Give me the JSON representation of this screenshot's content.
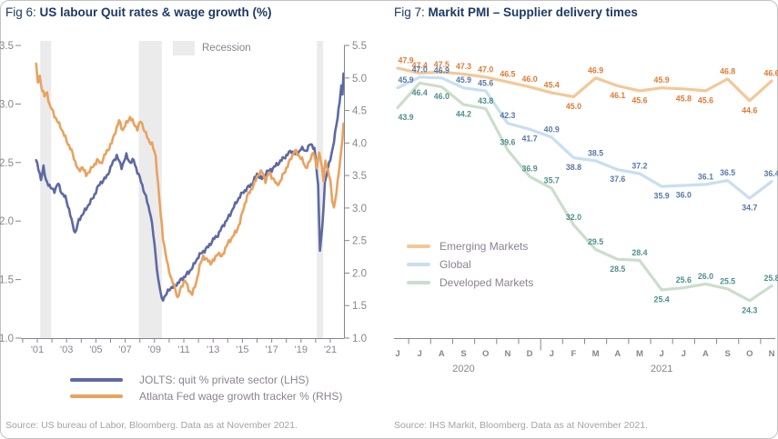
{
  "fig6": {
    "title_prefix": "Fig 6: ",
    "title": "US labour Quit rates & wage growth (%)",
    "recession_label": "Recession",
    "legend": [
      {
        "label": "JOLTS: quit % private sector (LHS)",
        "color": "#5e69a3"
      },
      {
        "label": "Atlanta Fed wage growth tracker % (RHS)",
        "color": "#e9a25f"
      }
    ],
    "source": "Source: US bureau of Labor, Bloomberg. Data as at November 2021.",
    "chart_data": {
      "type": "line",
      "title": "US labour Quit rates & wage growth (%)",
      "x_range": [
        1999.9,
        2021.95
      ],
      "x_tick_labels": [
        "'01",
        "'03",
        "'05",
        "'07",
        "'09",
        "'11",
        "'13",
        "'15",
        "'17",
        "'19",
        "'21"
      ],
      "x_tick_years": [
        2001,
        2003,
        2005,
        2007,
        2009,
        2011,
        2013,
        2015,
        2017,
        2019,
        2021
      ],
      "ylim_left": [
        1.0,
        3.5
      ],
      "yticks_left": [
        "3.5",
        "3.0",
        "2.5",
        "2.0",
        "1.5",
        "1.0"
      ],
      "ylim_right": [
        1.0,
        5.5
      ],
      "yticks_right": [
        "5.5",
        "5.0",
        "4.5",
        "4.0",
        "3.5",
        "3.0",
        "2.5",
        "2.0",
        "1.5",
        "1.0"
      ],
      "recession_band_color": "#ebebeb",
      "recession_bands": [
        [
          2001.2,
          2001.95
        ],
        [
          2007.92,
          2009.5
        ],
        [
          2020.08,
          2020.5
        ]
      ],
      "series": [
        {
          "name": "JOLTS: quit % private sector (LHS)",
          "axis": "left",
          "color": "#5e69a3",
          "points": [
            [
              2000.92,
              2.52
            ],
            [
              2001.08,
              2.44
            ],
            [
              2001.25,
              2.36
            ],
            [
              2001.42,
              2.46
            ],
            [
              2001.58,
              2.35
            ],
            [
              2001.75,
              2.32
            ],
            [
              2001.92,
              2.28
            ],
            [
              2002.17,
              2.26
            ],
            [
              2002.42,
              2.32
            ],
            [
              2002.67,
              2.24
            ],
            [
              2002.92,
              2.2
            ],
            [
              2003.17,
              2.1
            ],
            [
              2003.42,
              1.96
            ],
            [
              2003.58,
              1.9
            ],
            [
              2003.83,
              2.0
            ],
            [
              2004.08,
              2.06
            ],
            [
              2004.33,
              2.1
            ],
            [
              2004.58,
              2.16
            ],
            [
              2004.83,
              2.2
            ],
            [
              2005.08,
              2.28
            ],
            [
              2005.42,
              2.34
            ],
            [
              2005.75,
              2.38
            ],
            [
              2006.08,
              2.48
            ],
            [
              2006.42,
              2.56
            ],
            [
              2006.75,
              2.46
            ],
            [
              2007.08,
              2.56
            ],
            [
              2007.33,
              2.5
            ],
            [
              2007.58,
              2.52
            ],
            [
              2007.83,
              2.42
            ],
            [
              2008.08,
              2.34
            ],
            [
              2008.42,
              2.2
            ],
            [
              2008.75,
              2.05
            ],
            [
              2009.0,
              1.8
            ],
            [
              2009.25,
              1.5
            ],
            [
              2009.5,
              1.33
            ],
            [
              2009.75,
              1.36
            ],
            [
              2010.0,
              1.42
            ],
            [
              2010.33,
              1.44
            ],
            [
              2010.67,
              1.48
            ],
            [
              2011.0,
              1.52
            ],
            [
              2011.33,
              1.56
            ],
            [
              2011.67,
              1.62
            ],
            [
              2012.0,
              1.7
            ],
            [
              2012.33,
              1.74
            ],
            [
              2012.67,
              1.78
            ],
            [
              2013.0,
              1.84
            ],
            [
              2013.33,
              1.88
            ],
            [
              2013.67,
              1.96
            ],
            [
              2014.0,
              2.02
            ],
            [
              2014.33,
              2.1
            ],
            [
              2014.67,
              2.18
            ],
            [
              2015.0,
              2.24
            ],
            [
              2015.33,
              2.28
            ],
            [
              2015.67,
              2.32
            ],
            [
              2016.0,
              2.4
            ],
            [
              2016.33,
              2.36
            ],
            [
              2016.67,
              2.42
            ],
            [
              2017.0,
              2.44
            ],
            [
              2017.33,
              2.48
            ],
            [
              2017.67,
              2.52
            ],
            [
              2018.0,
              2.56
            ],
            [
              2018.33,
              2.6
            ],
            [
              2018.67,
              2.56
            ],
            [
              2019.0,
              2.62
            ],
            [
              2019.33,
              2.6
            ],
            [
              2019.67,
              2.66
            ],
            [
              2019.92,
              2.62
            ],
            [
              2020.17,
              2.3
            ],
            [
              2020.29,
              1.76
            ],
            [
              2020.46,
              1.95
            ],
            [
              2020.63,
              2.32
            ],
            [
              2020.83,
              2.46
            ],
            [
              2021.0,
              2.52
            ],
            [
              2021.17,
              2.62
            ],
            [
              2021.33,
              2.76
            ],
            [
              2021.5,
              2.88
            ],
            [
              2021.63,
              3.02
            ],
            [
              2021.75,
              3.16
            ],
            [
              2021.83,
              3.08
            ],
            [
              2021.92,
              3.26
            ]
          ]
        },
        {
          "name": "Atlanta Fed wage growth tracker % (RHS)",
          "axis": "right",
          "color": "#e9a25f",
          "points": [
            [
              2000.92,
              5.22
            ],
            [
              2001.04,
              4.9
            ],
            [
              2001.17,
              5.02
            ],
            [
              2001.33,
              4.82
            ],
            [
              2001.5,
              4.72
            ],
            [
              2001.67,
              4.78
            ],
            [
              2001.83,
              4.58
            ],
            [
              2002.08,
              4.48
            ],
            [
              2002.33,
              4.34
            ],
            [
              2002.58,
              4.26
            ],
            [
              2002.83,
              4.12
            ],
            [
              2003.08,
              4.0
            ],
            [
              2003.33,
              3.88
            ],
            [
              2003.58,
              3.72
            ],
            [
              2003.83,
              3.56
            ],
            [
              2004.08,
              3.64
            ],
            [
              2004.33,
              3.5
            ],
            [
              2004.58,
              3.58
            ],
            [
              2004.83,
              3.64
            ],
            [
              2005.08,
              3.74
            ],
            [
              2005.33,
              3.68
            ],
            [
              2005.58,
              3.8
            ],
            [
              2005.83,
              3.9
            ],
            [
              2006.08,
              4.0
            ],
            [
              2006.33,
              4.18
            ],
            [
              2006.58,
              4.34
            ],
            [
              2006.83,
              4.2
            ],
            [
              2007.08,
              4.3
            ],
            [
              2007.33,
              4.4
            ],
            [
              2007.58,
              4.3
            ],
            [
              2007.83,
              4.22
            ],
            [
              2008.08,
              4.34
            ],
            [
              2008.33,
              4.18
            ],
            [
              2008.58,
              4.05
            ],
            [
              2008.83,
              3.98
            ],
            [
              2009.08,
              3.8
            ],
            [
              2009.25,
              3.35
            ],
            [
              2009.42,
              2.9
            ],
            [
              2009.58,
              2.55
            ],
            [
              2009.75,
              2.3
            ],
            [
              2009.92,
              2.1
            ],
            [
              2010.17,
              1.9
            ],
            [
              2010.42,
              1.75
            ],
            [
              2010.58,
              1.62
            ],
            [
              2010.83,
              1.78
            ],
            [
              2011.08,
              1.9
            ],
            [
              2011.33,
              1.74
            ],
            [
              2011.58,
              1.68
            ],
            [
              2011.83,
              1.84
            ],
            [
              2012.08,
              2.1
            ],
            [
              2012.33,
              2.26
            ],
            [
              2012.58,
              2.2
            ],
            [
              2012.83,
              2.16
            ],
            [
              2013.08,
              2.2
            ],
            [
              2013.33,
              2.32
            ],
            [
              2013.58,
              2.24
            ],
            [
              2013.83,
              2.38
            ],
            [
              2014.08,
              2.48
            ],
            [
              2014.33,
              2.56
            ],
            [
              2014.58,
              2.64
            ],
            [
              2014.83,
              2.78
            ],
            [
              2015.08,
              3.0
            ],
            [
              2015.33,
              3.18
            ],
            [
              2015.58,
              3.28
            ],
            [
              2015.83,
              3.38
            ],
            [
              2016.08,
              3.52
            ],
            [
              2016.33,
              3.56
            ],
            [
              2016.58,
              3.42
            ],
            [
              2016.83,
              3.54
            ],
            [
              2017.08,
              3.46
            ],
            [
              2017.33,
              3.36
            ],
            [
              2017.58,
              3.4
            ],
            [
              2017.83,
              3.54
            ],
            [
              2018.08,
              3.64
            ],
            [
              2018.33,
              3.78
            ],
            [
              2018.58,
              3.88
            ],
            [
              2018.83,
              3.82
            ],
            [
              2019.08,
              3.74
            ],
            [
              2019.33,
              3.62
            ],
            [
              2019.58,
              3.7
            ],
            [
              2019.83,
              3.88
            ],
            [
              2020.08,
              3.62
            ],
            [
              2020.25,
              3.88
            ],
            [
              2020.42,
              3.62
            ],
            [
              2020.54,
              3.42
            ],
            [
              2020.67,
              3.74
            ],
            [
              2020.83,
              3.58
            ],
            [
              2021.0,
              3.42
            ],
            [
              2021.13,
              3.14
            ],
            [
              2021.25,
              3.0
            ],
            [
              2021.42,
              3.24
            ],
            [
              2021.58,
              3.56
            ],
            [
              2021.71,
              3.8
            ],
            [
              2021.83,
              4.08
            ],
            [
              2021.92,
              4.3
            ]
          ]
        }
      ]
    }
  },
  "fig7": {
    "title_prefix": "Fig 7: ",
    "title": "Markit PMI – Supplier delivery times",
    "source": "Source: IHS Markit, Bloomberg. Data as at November 2021.",
    "legend": [
      {
        "label": "Emerging Markets",
        "color": "#f3c897"
      },
      {
        "label": "Global",
        "color": "#c8dff0"
      },
      {
        "label": "Developed Markets",
        "color": "#cbdecb"
      }
    ],
    "chart_data": {
      "type": "line",
      "title": "Markit PMI – Supplier delivery times",
      "x_labels": [
        "J",
        "J",
        "A",
        "S",
        "O",
        "N",
        "D",
        "J",
        "F",
        "M",
        "A",
        "M",
        "J",
        "J",
        "A",
        "S",
        "O",
        "N"
      ],
      "year_labels": [
        {
          "text": "2020",
          "months": [
            0,
            6
          ]
        },
        {
          "text": "2021",
          "months": [
            7,
            17
          ]
        }
      ],
      "ylim": [
        22,
        50
      ],
      "series": [
        {
          "name": "Emerging Markets",
          "line_color": "#f3c897",
          "label_color": "#e07b36",
          "values": [
            47.9,
            47.4,
            47.5,
            47.3,
            47.0,
            46.5,
            46.0,
            45.4,
            45.0,
            46.9,
            46.1,
            45.6,
            45.9,
            45.8,
            45.6,
            46.8,
            44.6,
            46.6
          ],
          "label_pos": [
            "a",
            "a",
            "a",
            "a",
            "a",
            "a",
            "a",
            "a",
            "b",
            "a",
            "b",
            "b",
            "a",
            "b",
            "b",
            "a",
            "b",
            "a"
          ]
        },
        {
          "name": "Global",
          "line_color": "#c8dff0",
          "label_color": "#5878a8",
          "values": [
            45.9,
            47.0,
            46.9,
            45.9,
            45.6,
            42.3,
            41.7,
            40.9,
            38.8,
            38.5,
            37.6,
            37.2,
            35.9,
            36.0,
            36.1,
            36.5,
            34.7,
            36.4
          ],
          "label_pos": [
            "a",
            "a",
            "a",
            "a",
            "a",
            "a",
            "b",
            "a",
            "b",
            "a",
            "b",
            "a",
            "b",
            "b",
            "a",
            "a",
            "b",
            "a"
          ]
        },
        {
          "name": "Developed Markets",
          "line_color": "#cbdecb",
          "label_color": "#4f8f8c",
          "values": [
            43.9,
            46.4,
            46.0,
            44.2,
            43.8,
            39.6,
            36.9,
            35.7,
            32.0,
            29.5,
            28.5,
            28.4,
            25.4,
            25.6,
            26.0,
            25.5,
            24.3,
            25.8
          ],
          "label_pos": [
            "b",
            "b",
            "b",
            "b",
            "a",
            "a",
            "a",
            "a",
            "a",
            "a",
            "b",
            "a",
            "b",
            "a",
            "a",
            "a",
            "b",
            "a"
          ]
        }
      ]
    }
  },
  "ui_colors": {
    "title_navy": "#1e3a64",
    "axis_gray": "#8b8390",
    "source_gray": "#a6a1a8",
    "band_gray": "#ebebeb"
  }
}
